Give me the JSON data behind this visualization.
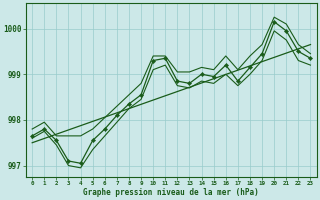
{
  "xlabel": "Graphe pression niveau de la mer (hPa)",
  "background_color": "#cce8e8",
  "grid_color": "#99cccc",
  "line_color": "#1a5c1a",
  "text_color": "#1a5c1a",
  "x_values": [
    0,
    1,
    2,
    3,
    4,
    5,
    6,
    7,
    8,
    9,
    10,
    11,
    12,
    13,
    14,
    15,
    16,
    17,
    18,
    19,
    20,
    21,
    22,
    23
  ],
  "y_main": [
    997.65,
    997.8,
    997.55,
    997.1,
    997.05,
    997.55,
    997.8,
    998.1,
    998.35,
    998.55,
    999.3,
    999.35,
    998.85,
    998.8,
    999.0,
    998.95,
    999.2,
    998.85,
    999.15,
    999.45,
    1000.15,
    999.95,
    999.5,
    999.35
  ],
  "y_upper": [
    997.8,
    997.95,
    997.65,
    997.65,
    997.65,
    997.8,
    998.05,
    998.3,
    998.55,
    998.8,
    999.4,
    999.4,
    999.05,
    999.05,
    999.15,
    999.1,
    999.4,
    999.1,
    999.4,
    999.65,
    1000.25,
    1000.1,
    999.65,
    999.45
  ],
  "y_lower": [
    997.6,
    997.75,
    997.45,
    997.0,
    996.95,
    997.35,
    997.65,
    997.95,
    998.25,
    998.45,
    999.1,
    999.2,
    998.75,
    998.7,
    998.85,
    998.8,
    999.0,
    998.75,
    999.0,
    999.3,
    999.95,
    999.75,
    999.3,
    999.2
  ],
  "trend_x": [
    0,
    23
  ],
  "trend_y": [
    997.5,
    999.65
  ],
  "ylim": [
    996.75,
    1000.55
  ],
  "xlim": [
    -0.5,
    23.5
  ],
  "yticks": [
    997,
    998,
    999,
    1000
  ],
  "xticks": [
    0,
    1,
    2,
    3,
    4,
    5,
    6,
    7,
    8,
    9,
    10,
    11,
    12,
    13,
    14,
    15,
    16,
    17,
    18,
    19,
    20,
    21,
    22,
    23
  ]
}
